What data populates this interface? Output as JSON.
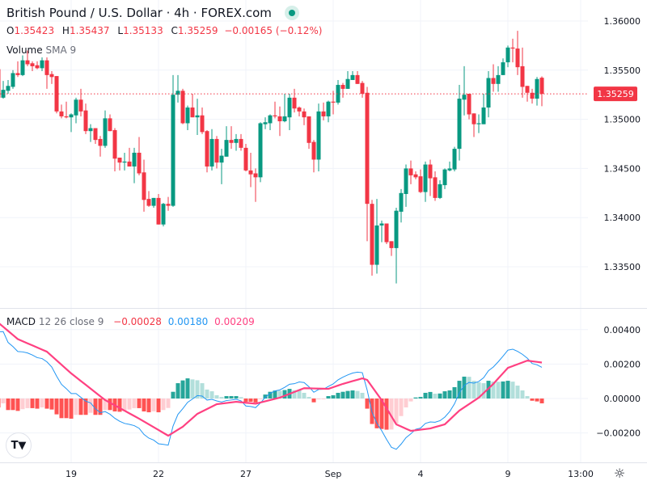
{
  "header": {
    "title": "British Pound / U.S. Dollar · 4h · FOREX.com",
    "ohlc": {
      "o_label": "O",
      "o": "1.35423",
      "h_label": "H",
      "h": "1.35437",
      "l_label": "L",
      "l": "1.35133",
      "c_label": "C",
      "c": "1.35259",
      "change": "−0.00165 (−0.12%)"
    },
    "volume": {
      "label": "Volume",
      "params": "SMA 9"
    },
    "macd": {
      "label": "MACD",
      "params": "12 26 close 9",
      "hist": "−0.00028",
      "macd": "0.00180",
      "signal": "0.00209"
    }
  },
  "colors": {
    "up": "#089981",
    "down": "#f23645",
    "hist_up_strong": "#26a69a",
    "hist_up_weak": "#b2dfdb",
    "hist_down_strong": "#ff5252",
    "hist_down_weak": "#ffcdd2",
    "macd_line": "#2196f3",
    "signal_line": "#ff4081"
  },
  "logo_text": "TV",
  "settings_icon": "gear-icon",
  "chart_data": [
    {
      "type": "candlestick",
      "title": "British Pound / U.S. Dollar · 4h · FOREX.com",
      "ylim": [
        1.3315,
        1.362
      ],
      "y_ticks": [
        "1.36000",
        "1.35500",
        "1.35000",
        "1.34500",
        "1.34000",
        "1.33500"
      ],
      "y_tick_values": [
        1.36,
        1.355,
        1.35,
        1.345,
        1.34,
        1.335
      ],
      "last_price": 1.35259,
      "last_price_label": "1.35259",
      "x_ticks": [
        {
          "i": 15,
          "label": "19"
        },
        {
          "i": 33,
          "label": "22"
        },
        {
          "i": 51,
          "label": "27"
        },
        {
          "i": 69,
          "label": "Sep"
        },
        {
          "i": 87,
          "label": "4"
        },
        {
          "i": 105,
          "label": "9"
        },
        {
          "i": 120,
          "label": "13:00"
        }
      ],
      "ohlc": [
        [
          1.3551,
          1.3553,
          1.3521,
          1.3522
        ],
        [
          1.3522,
          1.3539,
          1.3521,
          1.353
        ],
        [
          1.3529,
          1.354,
          1.3526,
          1.3534
        ],
        [
          1.3533,
          1.355,
          1.3531,
          1.3547
        ],
        [
          1.3547,
          1.3559,
          1.3543,
          1.3545
        ],
        [
          1.3545,
          1.3565,
          1.3544,
          1.356
        ],
        [
          1.356,
          1.357,
          1.3554,
          1.3556
        ],
        [
          1.3557,
          1.3559,
          1.3549,
          1.3554
        ],
        [
          1.3555,
          1.3559,
          1.3551,
          1.3552
        ],
        [
          1.3552,
          1.3563,
          1.3549,
          1.356
        ],
        [
          1.356,
          1.3563,
          1.3531,
          1.3545
        ],
        [
          1.3546,
          1.3549,
          1.3536,
          1.3543
        ],
        [
          1.3544,
          1.3544,
          1.3506,
          1.3508
        ],
        [
          1.3508,
          1.3515,
          1.3501,
          1.3503
        ],
        [
          1.3503,
          1.3518,
          1.3501,
          1.3502
        ],
        [
          1.3502,
          1.3506,
          1.3487,
          1.3505
        ],
        [
          1.3504,
          1.3522,
          1.3496,
          1.352
        ],
        [
          1.352,
          1.3531,
          1.3503,
          1.3508
        ],
        [
          1.3509,
          1.3516,
          1.3485,
          1.3488
        ],
        [
          1.3488,
          1.3495,
          1.3477,
          1.3491
        ],
        [
          1.3491,
          1.3491,
          1.3475,
          1.3479
        ],
        [
          1.348,
          1.3483,
          1.3462,
          1.3473
        ],
        [
          1.3473,
          1.3509,
          1.3471,
          1.3501
        ],
        [
          1.3501,
          1.3505,
          1.3488,
          1.3488
        ],
        [
          1.3489,
          1.3491,
          1.3447,
          1.346
        ],
        [
          1.3461,
          1.3461,
          1.3448,
          1.3456
        ],
        [
          1.3456,
          1.3466,
          1.3448,
          1.3457
        ],
        [
          1.3457,
          1.3471,
          1.3452,
          1.3452
        ],
        [
          1.3452,
          1.3471,
          1.3435,
          1.3466
        ],
        [
          1.3466,
          1.3482,
          1.3443,
          1.3445
        ],
        [
          1.3446,
          1.3459,
          1.3406,
          1.3418
        ],
        [
          1.3419,
          1.3427,
          1.3411,
          1.3412
        ],
        [
          1.3412,
          1.342,
          1.341,
          1.342
        ],
        [
          1.342,
          1.3424,
          1.3393,
          1.3393
        ],
        [
          1.3393,
          1.3415,
          1.3391,
          1.3414
        ],
        [
          1.3414,
          1.3421,
          1.3407,
          1.3412
        ],
        [
          1.3412,
          1.3545,
          1.3411,
          1.3525
        ],
        [
          1.3525,
          1.3545,
          1.3517,
          1.3529
        ],
        [
          1.3529,
          1.3531,
          1.3495,
          1.3496
        ],
        [
          1.3496,
          1.3514,
          1.3489,
          1.3512
        ],
        [
          1.3512,
          1.3526,
          1.3502,
          1.3502
        ],
        [
          1.3502,
          1.3521,
          1.3484,
          1.3504
        ],
        [
          1.3504,
          1.3512,
          1.3485,
          1.3487
        ],
        [
          1.3488,
          1.3489,
          1.3446,
          1.3452
        ],
        [
          1.3452,
          1.349,
          1.3448,
          1.348
        ],
        [
          1.348,
          1.3483,
          1.345,
          1.3456
        ],
        [
          1.3456,
          1.347,
          1.3434,
          1.3463
        ],
        [
          1.3462,
          1.3493,
          1.3462,
          1.3479
        ],
        [
          1.3479,
          1.3493,
          1.347,
          1.3476
        ],
        [
          1.3476,
          1.3485,
          1.3468,
          1.348
        ],
        [
          1.348,
          1.3485,
          1.3468,
          1.3471
        ],
        [
          1.3471,
          1.3475,
          1.3447,
          1.3448
        ],
        [
          1.3448,
          1.3466,
          1.3431,
          1.3444
        ],
        [
          1.3445,
          1.345,
          1.3416,
          1.3441
        ],
        [
          1.3441,
          1.3497,
          1.3436,
          1.3496
        ],
        [
          1.3495,
          1.3502,
          1.349,
          1.3497
        ],
        [
          1.3496,
          1.3505,
          1.3489,
          1.3504
        ],
        [
          1.3504,
          1.3518,
          1.3501,
          1.3503
        ],
        [
          1.3503,
          1.3513,
          1.3483,
          1.3498
        ],
        [
          1.3498,
          1.3526,
          1.3497,
          1.3503
        ],
        [
          1.3502,
          1.3526,
          1.3489,
          1.3522
        ],
        [
          1.3522,
          1.3531,
          1.3507,
          1.3511
        ],
        [
          1.3512,
          1.3513,
          1.3503,
          1.3508
        ],
        [
          1.3508,
          1.3511,
          1.3494,
          1.3502
        ],
        [
          1.3503,
          1.3503,
          1.347,
          1.3476
        ],
        [
          1.3477,
          1.3479,
          1.3446,
          1.3459
        ],
        [
          1.3459,
          1.3516,
          1.3447,
          1.3508
        ],
        [
          1.3508,
          1.3517,
          1.3499,
          1.3503
        ],
        [
          1.3503,
          1.3519,
          1.3497,
          1.3518
        ],
        [
          1.3518,
          1.3529,
          1.3505,
          1.3517
        ],
        [
          1.3517,
          1.354,
          1.3515,
          1.3535
        ],
        [
          1.3535,
          1.3537,
          1.3522,
          1.3531
        ],
        [
          1.3531,
          1.3549,
          1.3531,
          1.3541
        ],
        [
          1.354,
          1.3549,
          1.354,
          1.3545
        ],
        [
          1.3545,
          1.3549,
          1.3536,
          1.3536
        ],
        [
          1.3537,
          1.3539,
          1.3522,
          1.3526
        ],
        [
          1.3527,
          1.3533,
          1.3376,
          1.3414
        ],
        [
          1.3414,
          1.3418,
          1.3341,
          1.3352
        ],
        [
          1.3352,
          1.3419,
          1.3343,
          1.3392
        ],
        [
          1.3392,
          1.3397,
          1.3375,
          1.3394
        ],
        [
          1.3394,
          1.3394,
          1.3373,
          1.3375
        ],
        [
          1.3376,
          1.3376,
          1.3361,
          1.3369
        ],
        [
          1.3369,
          1.341,
          1.3333,
          1.3407
        ],
        [
          1.3406,
          1.3429,
          1.3395,
          1.3425
        ],
        [
          1.3424,
          1.3454,
          1.3411,
          1.345
        ],
        [
          1.345,
          1.3458,
          1.3434,
          1.3443
        ],
        [
          1.3444,
          1.3447,
          1.3439,
          1.3441
        ],
        [
          1.3442,
          1.3449,
          1.3425,
          1.3426
        ],
        [
          1.3426,
          1.3457,
          1.3416,
          1.3454
        ],
        [
          1.3454,
          1.3459,
          1.3422,
          1.344
        ],
        [
          1.3441,
          1.3447,
          1.3417,
          1.342
        ],
        [
          1.342,
          1.3438,
          1.3419,
          1.3434
        ],
        [
          1.3433,
          1.345,
          1.3429,
          1.3449
        ],
        [
          1.3448,
          1.3457,
          1.3447,
          1.345
        ],
        [
          1.3449,
          1.3472,
          1.3447,
          1.347
        ],
        [
          1.347,
          1.3535,
          1.3458,
          1.3521
        ],
        [
          1.352,
          1.3554,
          1.3504,
          1.3525
        ],
        [
          1.3526,
          1.3526,
          1.35,
          1.3505
        ],
        [
          1.3506,
          1.3506,
          1.3482,
          1.3495
        ],
        [
          1.3495,
          1.3505,
          1.3486,
          1.3496
        ],
        [
          1.3495,
          1.3526,
          1.3495,
          1.3512
        ],
        [
          1.3512,
          1.3549,
          1.3502,
          1.3542
        ],
        [
          1.3542,
          1.3556,
          1.3528,
          1.3536
        ],
        [
          1.3536,
          1.3554,
          1.3528,
          1.3545
        ],
        [
          1.3545,
          1.3562,
          1.3545,
          1.3558
        ],
        [
          1.3558,
          1.3575,
          1.3553,
          1.3573
        ],
        [
          1.3573,
          1.3582,
          1.3558,
          1.3572
        ],
        [
          1.3572,
          1.359,
          1.3545,
          1.3553
        ],
        [
          1.3554,
          1.3573,
          1.3522,
          1.3533
        ],
        [
          1.3534,
          1.3534,
          1.3518,
          1.3527
        ],
        [
          1.3527,
          1.3531,
          1.3516,
          1.3521
        ],
        [
          1.3521,
          1.3543,
          1.3514,
          1.3541
        ],
        [
          1.35423,
          1.35437,
          1.35133,
          1.35259
        ]
      ]
    },
    {
      "type": "macd",
      "title": "MACD 12 26 close 9",
      "ylim": [
        -0.0038,
        0.0047
      ],
      "y_ticks": [
        "0.00400",
        "0.00200",
        "0.00000",
        "−0.00200"
      ],
      "y_tick_values": [
        0.004,
        0.002,
        0,
        -0.002
      ],
      "histogram": [
        -0.00052,
        -0.00028,
        -0.00067,
        -0.00067,
        -0.00072,
        -0.00062,
        -0.00056,
        -0.00056,
        -0.00059,
        -0.00052,
        -0.00059,
        -0.00064,
        -0.00092,
        -0.00114,
        -0.00114,
        -0.00117,
        -0.00095,
        -0.00095,
        -0.00095,
        -0.00083,
        -0.00095,
        -0.00095,
        -0.00067,
        -0.00067,
        -0.00075,
        -0.00077,
        -0.00074,
        -0.00064,
        -0.00056,
        -0.00056,
        -0.00075,
        -0.0008,
        -0.00075,
        -0.0008,
        -0.00067,
        -0.00055,
        0.00039,
        0.00089,
        0.00105,
        0.00117,
        0.00111,
        0.00106,
        0.00089,
        0.00052,
        0.00042,
        0.00019,
        9e-05,
        0.00014,
        0.00014,
        0.00014,
        8e-05,
        -0.00019,
        -0.00019,
        -0.00023,
        -3e-05,
        0.00023,
        0.00039,
        0.00046,
        0.00045,
        0.00049,
        0.00056,
        0.00048,
        0.00047,
        0.00033,
        9e-05,
        -0.00022,
        -5e-05,
        -3e-05,
        0.00014,
        0.00019,
        0.00033,
        0.00039,
        0.00044,
        0.00047,
        0.00044,
        0.00033,
        -0.00059,
        -0.00148,
        -0.00173,
        -0.00177,
        -0.00181,
        -0.0018,
        -0.00145,
        -0.00102,
        -0.00052,
        -0.00017,
        6e-05,
        9e-05,
        0.00033,
        0.00038,
        0.00028,
        0.00029,
        0.00042,
        0.00047,
        0.00066,
        0.00103,
        0.00127,
        0.00126,
        0.00103,
        0.00094,
        0.00089,
        0.00103,
        0.00098,
        0.00097,
        0.00099,
        0.00103,
        0.00098,
        0.00075,
        0.00047,
        0.00014,
        -0.00013,
        -0.00017,
        -0.00028
      ],
      "signal_points": [
        [
          0,
          0.0044
        ],
        [
          4,
          0.00345
        ],
        [
          10,
          0.00272
        ],
        [
          15,
          0.00146
        ],
        [
          22,
          -9e-05
        ],
        [
          29,
          -0.00117
        ],
        [
          35,
          -0.00216
        ],
        [
          38,
          -0.00164
        ],
        [
          41,
          -0.00089
        ],
        [
          45,
          -0.00033
        ],
        [
          49,
          -0.00019
        ],
        [
          53,
          -0.0003
        ],
        [
          58,
          5e-05
        ],
        [
          63,
          0.0006
        ],
        [
          68,
          0.00056
        ],
        [
          71,
          0.00085
        ],
        [
          75,
          0.00117
        ],
        [
          76,
          0.00108
        ],
        [
          79,
          -0.0001
        ],
        [
          82,
          -0.0015
        ],
        [
          85,
          -0.00188
        ],
        [
          89,
          -0.00174
        ],
        [
          92,
          -0.0015
        ],
        [
          95,
          -0.0007
        ],
        [
          99,
          5e-05
        ],
        [
          102,
          0.00085
        ],
        [
          105,
          0.00178
        ],
        [
          109,
          0.0022
        ],
        [
          112,
          0.00209
        ]
      ],
      "last_values": {
        "histogram": -0.00028,
        "macd": 0.0018,
        "signal": 0.00209
      }
    }
  ]
}
